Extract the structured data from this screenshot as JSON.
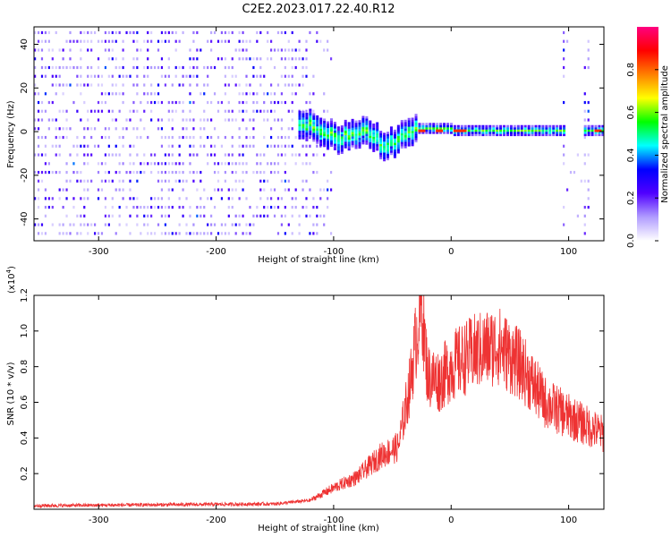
{
  "title": "C2E2.2023.017.22.40.R12",
  "chart_data": [
    {
      "type": "heatmap",
      "xlabel": "Height of straight line (km)",
      "ylabel": "Frequency (Hz)",
      "xlim": [
        -355,
        130
      ],
      "ylim": [
        -50,
        48
      ],
      "xticks": [
        -300,
        -200,
        -100,
        0,
        100
      ],
      "yticks": [
        -40,
        -20,
        0,
        20,
        40
      ],
      "colorbar": {
        "label": "Normalized spectral amplitude",
        "range": [
          0,
          1
        ],
        "ticks": [
          "0.0",
          "0.2",
          "0.4",
          "0.6",
          "0.8"
        ],
        "colors": [
          "#ffffff",
          "#b09cff",
          "#5000ff",
          "#0000ff",
          "#00ffff",
          "#00ff00",
          "#ffff00",
          "#ff7f00",
          "#ff0000",
          "#ff0080"
        ]
      },
      "signal_band": {
        "noise_region_x": [
          -355,
          -120
        ],
        "center_freq_hz": 0,
        "broad_segment_x": [
          -130,
          -30
        ],
        "narrow_segment_x": [
          -30,
          90
        ],
        "burst_columns_x": [
          92,
          118
        ],
        "peak_positions_x": [
          -25,
          -10,
          5,
          10,
          125
        ]
      }
    },
    {
      "type": "line",
      "xlabel": "Height of straight line (km)",
      "ylabel": "SNR (10 * v/v)",
      "ylabel_exponent": "(x10^4)",
      "ylabel_exponent_base": "(x10",
      "ylabel_exponent_power": "4",
      "ylabel_exponent_close": ")",
      "xlim": [
        -355,
        130
      ],
      "ylim": [
        0,
        1.2
      ],
      "xticks": [
        -300,
        -200,
        -100,
        0,
        100
      ],
      "yticks": [
        "0.2",
        "0.4",
        "0.6",
        "0.8",
        "1.0",
        "1.2"
      ],
      "color": "#ee3333",
      "envelope": {
        "x": [
          -355,
          -250,
          -150,
          -120,
          -100,
          -80,
          -60,
          -45,
          -35,
          -30,
          -25,
          -20,
          -10,
          0,
          20,
          40,
          60,
          80,
          100,
          130
        ],
        "y": [
          0.02,
          0.025,
          0.03,
          0.05,
          0.12,
          0.18,
          0.3,
          0.35,
          0.7,
          0.95,
          1.15,
          0.75,
          0.72,
          0.8,
          0.88,
          0.92,
          0.8,
          0.6,
          0.52,
          0.42
        ]
      }
    }
  ]
}
